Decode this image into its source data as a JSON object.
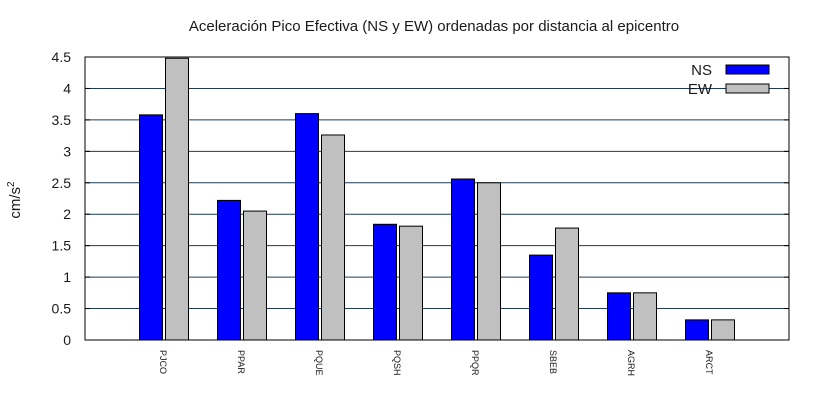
{
  "chart_data": {
    "type": "bar",
    "title": "Aceleración Pico Efectiva (NS y EW) ordenadas por distancia al epicentro",
    "ylabel_base": "cm/s",
    "ylabel_sup": "2",
    "xlabel": "",
    "ylim": [
      0,
      4.5
    ],
    "yticks": [
      "0",
      "0.5",
      "1",
      "1.5",
      "2",
      "2.5",
      "3",
      "3.5",
      "4",
      "4.5"
    ],
    "grid": "horizontal",
    "legend_position": "top-right",
    "categories": [
      "PJCO",
      "PPAR",
      "PQUE",
      "PQSH",
      "PPQR",
      "SBEB",
      "AGRH",
      "ARCT"
    ],
    "series": [
      {
        "name": "NS",
        "color": "#0000ff",
        "values": [
          3.58,
          2.22,
          3.6,
          1.84,
          2.56,
          1.35,
          0.75,
          0.32
        ]
      },
      {
        "name": "EW",
        "color": "#c0c0c0",
        "values": [
          4.48,
          2.05,
          3.26,
          1.81,
          2.5,
          1.78,
          0.75,
          0.32
        ]
      }
    ]
  }
}
